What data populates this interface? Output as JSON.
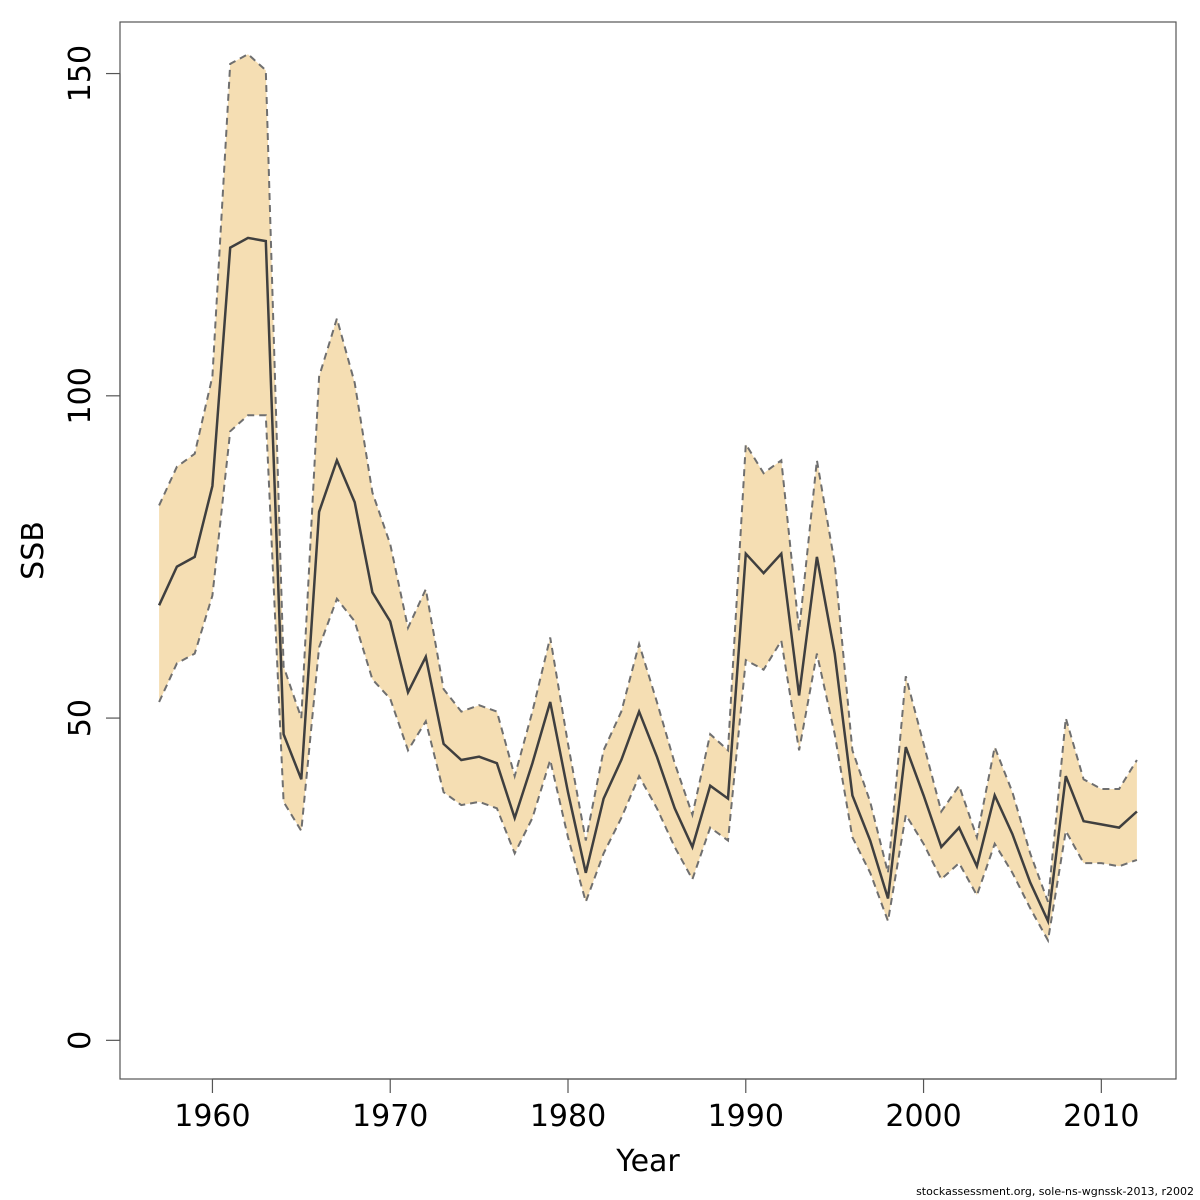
{
  "chart_data": {
    "type": "line",
    "xlabel": "Year",
    "ylabel": "SSB",
    "xlim": [
      1954.8,
      2014.2
    ],
    "ylim": [
      -6,
      158
    ],
    "x_ticks": [
      1960,
      1970,
      1980,
      1990,
      2000,
      2010
    ],
    "y_ticks": [
      0,
      50,
      100,
      150
    ],
    "grid": false,
    "legend": "none",
    "colors": {
      "band": "#F5DEB3",
      "line": "#3f3f3f",
      "bound": "#6f6f6f",
      "frame": "#555555"
    },
    "x": [
      1957,
      1958,
      1959,
      1960,
      1961,
      1962,
      1963,
      1964,
      1965,
      1966,
      1967,
      1968,
      1969,
      1970,
      1971,
      1972,
      1973,
      1974,
      1975,
      1976,
      1977,
      1978,
      1979,
      1980,
      1981,
      1982,
      1983,
      1984,
      1985,
      1986,
      1987,
      1988,
      1989,
      1990,
      1991,
      1992,
      1993,
      1994,
      1995,
      1996,
      1997,
      1998,
      1999,
      2000,
      2001,
      2002,
      2003,
      2004,
      2005,
      2006,
      2007,
      2008,
      2009,
      2010,
      2011,
      2012
    ],
    "series": [
      {
        "values": [
          67.5,
          73.5,
          75,
          86,
          123,
          124.5,
          124,
          47.5,
          40.5,
          82,
          90,
          83.5,
          69.5,
          65,
          54,
          59.5,
          46,
          43.5,
          44,
          43,
          34.5,
          43,
          52.5,
          38.5,
          26,
          37.5,
          43.5,
          51,
          44,
          36,
          30,
          39.5,
          37.5,
          75.5,
          72.5,
          75.5,
          53.5,
          75,
          60,
          38,
          31,
          22,
          45.5,
          38,
          30,
          33,
          27,
          38,
          32,
          24.5,
          18.5,
          41,
          34,
          33.5,
          33,
          35.5
        ]
      },
      {
        "values": [
          83,
          89,
          91,
          103,
          151.5,
          153,
          150.5,
          58,
          50,
          103,
          112,
          102,
          85,
          77,
          64,
          70,
          54.5,
          51,
          52,
          51,
          41,
          51,
          62.5,
          46,
          31,
          45,
          51,
          61.5,
          52.5,
          43,
          35,
          47.5,
          45,
          92.5,
          88,
          90,
          63.5,
          90,
          74,
          45,
          37,
          26,
          56.5,
          46,
          35.5,
          39.5,
          31.5,
          45.5,
          38.5,
          29,
          21.5,
          50,
          40.5,
          39,
          39,
          43.5
        ]
      },
      {
        "values": [
          52.5,
          58.5,
          60,
          69,
          94.5,
          97,
          97,
          37,
          32.5,
          61,
          68.5,
          65,
          56,
          53,
          45,
          49.5,
          38.5,
          36.5,
          37,
          36,
          29,
          34.5,
          43.5,
          31.5,
          21.5,
          29,
          34.5,
          41,
          36,
          30,
          25,
          33,
          31,
          59,
          57.5,
          62,
          45,
          60,
          47.5,
          31.5,
          26,
          18.5,
          35,
          30.5,
          25,
          27.5,
          22.5,
          30.5,
          26,
          20.5,
          15.5,
          32.5,
          27.5,
          27.5,
          27,
          28
        ]
      }
    ]
  },
  "caption": "stockassessment.org, sole-ns-wgnssk-2013, r2002"
}
